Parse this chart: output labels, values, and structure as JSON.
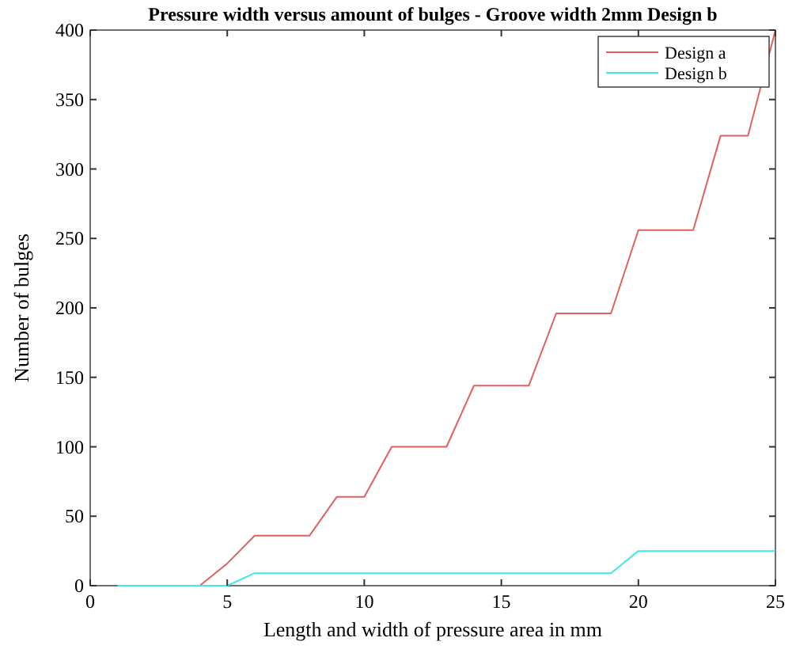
{
  "chart_data": {
    "type": "line",
    "title": "Pressure width versus amount of bulges - Groove width 2mm Design b",
    "xlabel": "Length and width of pressure area in mm",
    "ylabel": "Number of bulges",
    "x": [
      1,
      2,
      3,
      4,
      5,
      6,
      7,
      8,
      9,
      10,
      11,
      12,
      13,
      14,
      15,
      16,
      17,
      18,
      19,
      20,
      21,
      22,
      23,
      24,
      25
    ],
    "series": [
      {
        "name": "Design a",
        "color": "#e06060",
        "values": [
          null,
          null,
          null,
          0,
          16,
          36,
          36,
          36,
          64,
          64,
          100,
          100,
          100,
          144,
          144,
          144,
          196,
          196,
          196,
          256,
          256,
          256,
          324,
          324,
          400
        ]
      },
      {
        "name": "Design b",
        "color": "#40e8e8",
        "values": [
          0,
          0,
          0,
          0,
          0,
          9,
          9,
          9,
          9,
          9,
          9,
          9,
          9,
          9,
          9,
          9,
          9,
          9,
          9,
          25,
          25,
          25,
          25,
          25,
          25
        ]
      }
    ],
    "xlim": [
      0,
      25
    ],
    "xticks": [
      0,
      5,
      10,
      15,
      20,
      25
    ],
    "ylim": [
      0,
      400
    ],
    "yticks": [
      0,
      50,
      100,
      150,
      200,
      250,
      300,
      350,
      400
    ],
    "grid": false,
    "legend": "top right",
    "line_style": "solid"
  }
}
